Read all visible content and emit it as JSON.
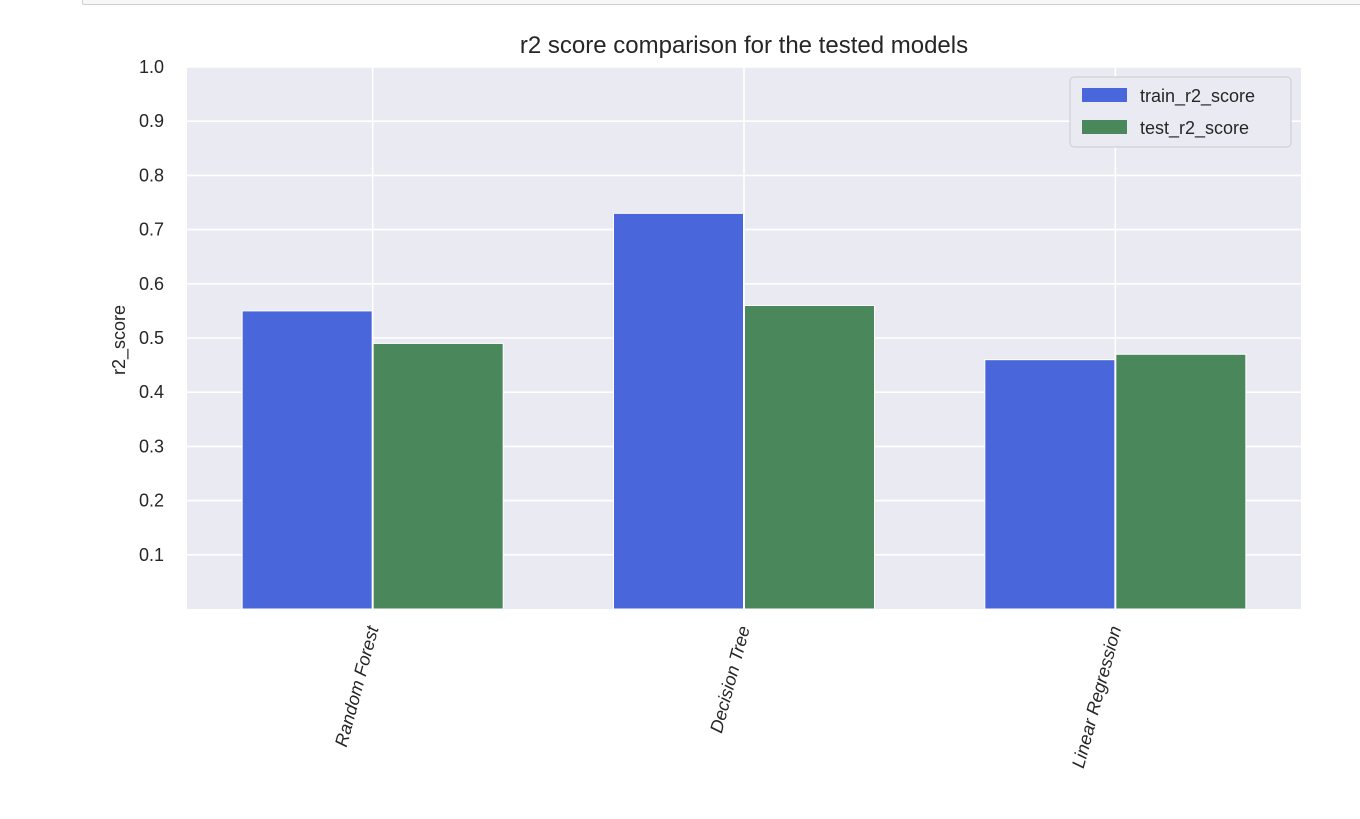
{
  "chart_data": {
    "type": "bar",
    "title": "r2 score comparison for the tested models",
    "xlabel": "",
    "ylabel": "r2_score",
    "categories": [
      "Random Forest",
      "Decision Tree",
      "Linear Regression"
    ],
    "series": [
      {
        "name": "train_r2_score",
        "values": [
          0.55,
          0.73,
          0.46
        ],
        "color": "#4a66db"
      },
      {
        "name": "test_r2_score",
        "values": [
          0.49,
          0.56,
          0.47
        ],
        "color": "#4a885b"
      }
    ],
    "ylim": [
      0,
      1.0
    ],
    "yticks": [
      "0.1",
      "0.2",
      "0.3",
      "0.4",
      "0.5",
      "0.6",
      "0.7",
      "0.8",
      "0.9",
      "1.0"
    ],
    "grid": true,
    "legend_position": "top-right",
    "style": {
      "plot_background": "#eaeaf2",
      "grid_color": "#ffffff"
    }
  }
}
